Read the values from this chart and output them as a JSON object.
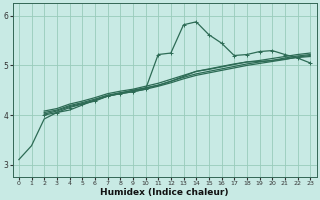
{
  "xlabel": "Humidex (Indice chaleur)",
  "ylabel": "",
  "bg_color": "#c8eae4",
  "grid_color": "#99ccbb",
  "line_color": "#2d6b55",
  "xlim": [
    -0.5,
    23.5
  ],
  "ylim": [
    2.75,
    6.25
  ],
  "yticks": [
    3,
    4,
    5,
    6
  ],
  "xticks": [
    0,
    1,
    2,
    3,
    4,
    5,
    6,
    7,
    8,
    9,
    10,
    11,
    12,
    13,
    14,
    15,
    16,
    17,
    18,
    19,
    20,
    21,
    22,
    23
  ],
  "lines": [
    {
      "x": [
        0,
        1,
        2,
        3,
        4,
        5,
        6,
        7,
        8,
        9,
        10,
        11,
        12,
        13,
        14,
        15,
        16,
        17,
        18,
        19,
        20,
        21,
        22,
        23
      ],
      "y": [
        3.1,
        3.38,
        3.92,
        4.05,
        4.1,
        4.2,
        4.3,
        4.38,
        4.44,
        4.5,
        4.55,
        4.6,
        4.68,
        4.78,
        4.88,
        4.93,
        4.98,
        5.03,
        5.07,
        5.08,
        5.1,
        5.13,
        5.16,
        5.18
      ],
      "marker": false,
      "lw": 0.9
    },
    {
      "x": [
        2,
        3,
        4,
        5,
        6,
        7,
        8,
        9,
        10,
        11,
        12,
        13,
        14,
        15,
        16,
        17,
        18,
        19,
        20,
        21,
        22,
        23
      ],
      "y": [
        4.02,
        4.08,
        4.17,
        4.23,
        4.3,
        4.38,
        4.43,
        4.47,
        4.52,
        4.58,
        4.65,
        4.73,
        4.8,
        4.85,
        4.9,
        4.95,
        5.0,
        5.04,
        5.08,
        5.12,
        5.17,
        5.2
      ],
      "marker": false,
      "lw": 0.9
    },
    {
      "x": [
        2,
        3,
        4,
        5,
        6,
        7,
        8,
        9,
        10,
        11,
        12,
        13,
        14,
        15,
        16,
        17,
        18,
        19,
        20,
        21,
        22,
        23
      ],
      "y": [
        4.05,
        4.1,
        4.19,
        4.25,
        4.32,
        4.4,
        4.45,
        4.49,
        4.54,
        4.6,
        4.68,
        4.76,
        4.83,
        4.88,
        4.93,
        4.98,
        5.03,
        5.07,
        5.1,
        5.15,
        5.19,
        5.22
      ],
      "marker": false,
      "lw": 0.9
    },
    {
      "x": [
        2,
        3,
        4,
        5,
        6,
        7,
        8,
        9,
        10,
        11,
        12,
        13,
        14,
        15,
        16,
        17,
        18,
        19,
        20,
        21,
        22,
        23
      ],
      "y": [
        4.08,
        4.13,
        4.22,
        4.28,
        4.35,
        4.43,
        4.48,
        4.52,
        4.58,
        4.64,
        4.72,
        4.8,
        4.88,
        4.92,
        4.97,
        5.02,
        5.07,
        5.1,
        5.14,
        5.18,
        5.22,
        5.25
      ],
      "marker": false,
      "lw": 0.9
    },
    {
      "x": [
        2,
        3,
        4,
        5,
        6,
        7,
        8,
        9,
        10,
        11,
        12,
        13,
        14,
        15,
        16,
        17,
        18,
        19,
        20,
        21,
        22,
        23
      ],
      "y": [
        4.0,
        4.05,
        4.15,
        4.22,
        4.28,
        4.38,
        4.43,
        4.47,
        4.52,
        5.22,
        5.25,
        5.82,
        5.88,
        5.62,
        5.45,
        5.2,
        5.22,
        5.28,
        5.3,
        5.22,
        5.15,
        5.05
      ],
      "marker": true,
      "lw": 0.9
    }
  ]
}
